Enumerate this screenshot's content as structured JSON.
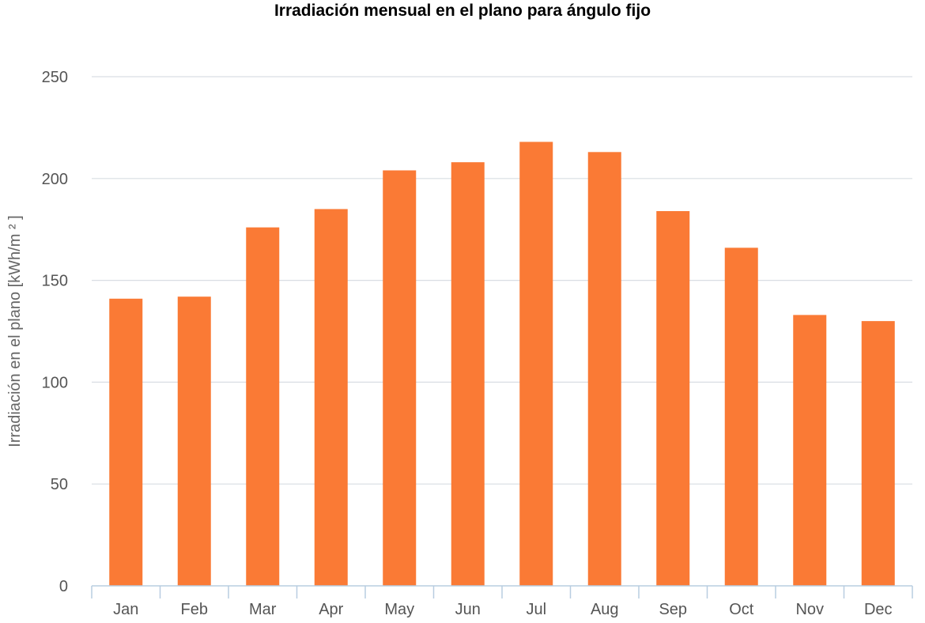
{
  "chart_data": {
    "type": "bar",
    "title": "Irradiación mensual en el plano para ángulo fijo",
    "xlabel": "",
    "ylabel": "Irradiación en el plano [kWh/m ² ]",
    "categories": [
      "Jan",
      "Feb",
      "Mar",
      "Apr",
      "May",
      "Jun",
      "Jul",
      "Aug",
      "Sep",
      "Oct",
      "Nov",
      "Dec"
    ],
    "series": [
      {
        "name": "Irradiación en el plano",
        "values": [
          141,
          142,
          176,
          185,
          204,
          208,
          218,
          213,
          184,
          166,
          133,
          130
        ]
      }
    ],
    "yticks": [
      0,
      50,
      100,
      150,
      200,
      250
    ],
    "ylim": [
      0,
      250
    ],
    "grid": true,
    "legend": "none",
    "colors": {
      "bar": "#fa7a35",
      "grid": "#d9dde3",
      "axis": "#b8cde0"
    }
  }
}
